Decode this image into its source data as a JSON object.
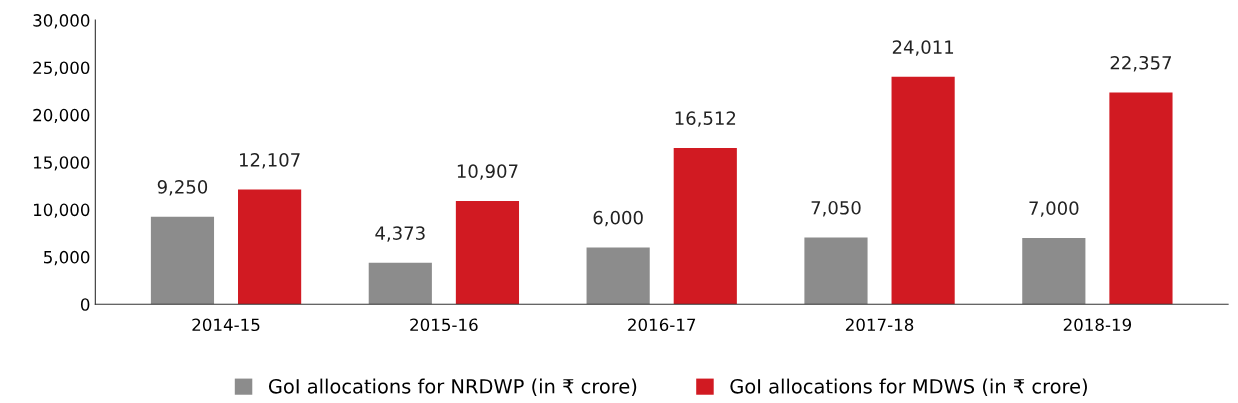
{
  "chart_data": {
    "type": "bar",
    "categories": [
      "2014-15",
      "2015-16",
      "2016-17",
      "2017-18",
      "2018-19"
    ],
    "series": [
      {
        "name": "GoI allocations for NRDWP (in ₹ crore)",
        "color": "#8c8c8c",
        "values": [
          9250,
          4373,
          6000,
          7050,
          7000
        ],
        "value_labels": [
          "9,250",
          "4,373",
          "6,000",
          "7,050",
          "7,000"
        ]
      },
      {
        "name": "GoI allocations for MDWS (in ₹ crore)",
        "color": "#d11a22",
        "values": [
          12107,
          10907,
          16512,
          24011,
          22357
        ],
        "value_labels": [
          "12,107",
          "10,907",
          "16,512",
          "24,011",
          "22,357"
        ]
      }
    ],
    "ylim": [
      0,
      30000
    ],
    "yticks": [
      {
        "value": 0,
        "label": "0"
      },
      {
        "value": 5000,
        "label": "5,000"
      },
      {
        "value": 10000,
        "label": "10,000"
      },
      {
        "value": 15000,
        "label": "15,000"
      },
      {
        "value": 20000,
        "label": "20,000"
      },
      {
        "value": 25000,
        "label": "25,000"
      },
      {
        "value": 30000,
        "label": "30,000"
      }
    ],
    "grid": false,
    "legend": "bottom"
  }
}
